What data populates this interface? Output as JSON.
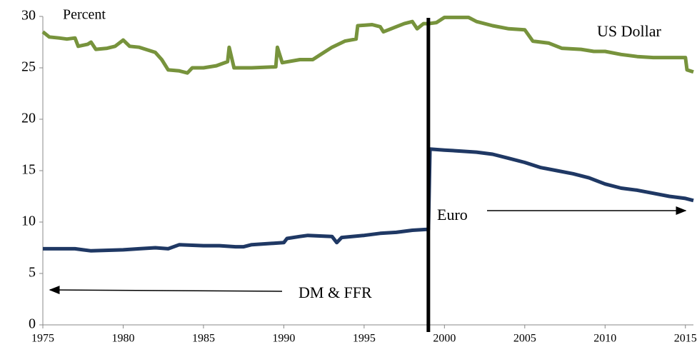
{
  "chart_data": {
    "type": "line",
    "y_label": "Percent",
    "xlim": [
      1975,
      2015.5
    ],
    "xticks": [
      1975,
      1980,
      1985,
      1990,
      1995,
      2000,
      2005,
      2010,
      2015
    ],
    "ylim": [
      0,
      30
    ],
    "yticks": [
      0,
      5,
      10,
      15,
      20,
      25,
      30
    ],
    "vline_x": 1999,
    "vline_color": "#000000",
    "annotations": [
      "US Dollar",
      "Euro",
      "DM & FFR"
    ],
    "series": [
      {
        "name": "US Dollar",
        "color": "#77933c",
        "x": [
          1975,
          1975.4,
          1976,
          1976.5,
          1977,
          1977.2,
          1977.8,
          1978,
          1978.3,
          1979,
          1979.5,
          1980,
          1980.4,
          1981,
          1982,
          1982.4,
          1982.8,
          1983.5,
          1984,
          1984.3,
          1985,
          1985.8,
          1986.5,
          1986.6,
          1986.9,
          1988,
          1989.5,
          1989.6,
          1989.9,
          1991,
          1991.8,
          1992.5,
          1993,
          1993.8,
          1994.5,
          1994.6,
          1995.5,
          1996,
          1996.2,
          1997,
          1997.5,
          1998,
          1998.3,
          1998.7,
          1999,
          1999.5,
          2000,
          2001.5,
          2002,
          2003,
          2004,
          2005,
          2005.5,
          2006.5,
          2007.3,
          2008.5,
          2009.3,
          2010,
          2011,
          2012,
          2013,
          2014,
          2015,
          2015.1,
          2015.5
        ],
        "values": [
          28.5,
          28,
          27.9,
          27.8,
          27.9,
          27.1,
          27.3,
          27.5,
          26.8,
          26.9,
          27.1,
          27.7,
          27.1,
          27,
          26.5,
          25.8,
          24.8,
          24.7,
          24.5,
          25,
          25,
          25.2,
          25.6,
          27,
          25,
          25,
          25.1,
          27,
          25.5,
          25.8,
          25.8,
          26.5,
          27,
          27.6,
          27.8,
          29.1,
          29.2,
          29,
          28.5,
          29,
          29.3,
          29.5,
          28.8,
          29.3,
          29.3,
          29.4,
          29.9,
          29.9,
          29.5,
          29.1,
          28.8,
          28.7,
          27.6,
          27.4,
          26.9,
          26.8,
          26.6,
          26.6,
          26.3,
          26.1,
          26,
          26,
          26,
          24.8,
          24.6
        ]
      },
      {
        "color": "#1f3864",
        "x": [
          1975,
          1977,
          1977.5,
          1978,
          1980,
          1981,
          1982,
          1982.8,
          1983.5,
          1985,
          1986,
          1987,
          1987.5,
          1988,
          1990,
          1990.2,
          1991,
          1991.5,
          1993,
          1993.3,
          1993.6,
          1995,
          1996,
          1997,
          1998,
          1999,
          1999.1,
          2000,
          2001,
          2002,
          2003,
          2004,
          2005,
          2006,
          2007,
          2008,
          2009,
          2010,
          2011,
          2012,
          2013,
          2014,
          2015,
          2015.5
        ],
        "values": [
          7.4,
          7.4,
          7.3,
          7.2,
          7.3,
          7.4,
          7.5,
          7.4,
          7.8,
          7.7,
          7.7,
          7.6,
          7.6,
          7.8,
          8,
          8.4,
          8.6,
          8.7,
          8.6,
          8,
          8.5,
          8.7,
          8.9,
          9,
          9.2,
          9.3,
          17.1,
          17,
          16.9,
          16.8,
          16.6,
          16.2,
          15.8,
          15.3,
          15,
          14.7,
          14.3,
          13.7,
          13.3,
          13.1,
          12.8,
          12.5,
          12.3,
          12.1
        ]
      }
    ]
  }
}
